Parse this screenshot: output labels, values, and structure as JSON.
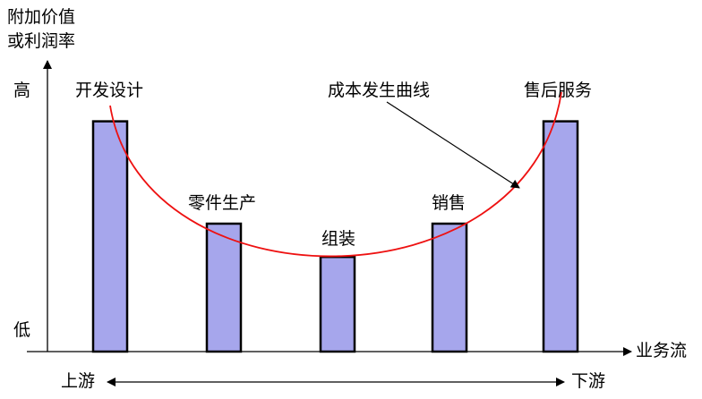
{
  "y_axis": {
    "title_line1": "附加价值",
    "title_line2": "或利润率",
    "high_label": "高",
    "low_label": "低"
  },
  "x_axis": {
    "title": "业务流",
    "upstream_label": "上游",
    "downstream_label": "下游"
  },
  "curve": {
    "label": "成本发生曲线",
    "color": "#ee1111"
  },
  "colors": {
    "bar_fill": "#a6a6ec",
    "bar_stroke": "#000000",
    "axis": "#000000"
  },
  "stages": [
    {
      "label": "开发设计",
      "level": 0.9
    },
    {
      "label": "零件生产",
      "level": 0.5
    },
    {
      "label": "组装",
      "level": 0.37
    },
    {
      "label": "销售",
      "level": 0.5
    },
    {
      "label": "售后服务",
      "level": 0.9
    }
  ]
}
